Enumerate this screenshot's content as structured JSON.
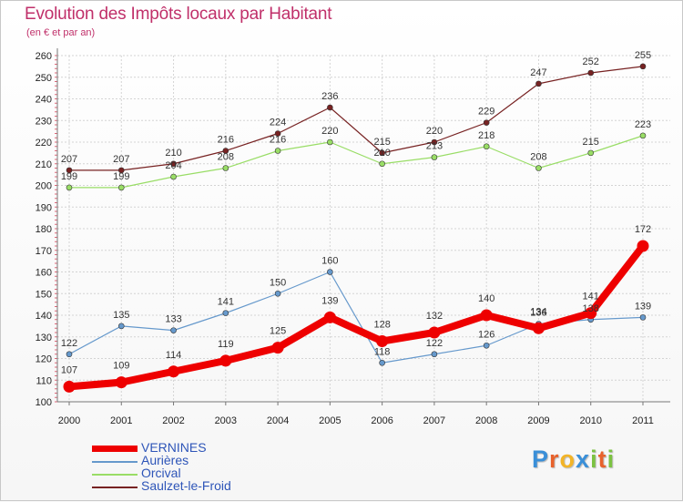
{
  "chart_data": {
    "type": "line",
    "title": "Evolution des Impôts locaux par Habitant",
    "subtitle": "(en € et par an)",
    "xlabel": "",
    "ylabel": "",
    "x": [
      "2000",
      "2001",
      "2002",
      "2003",
      "2004",
      "2005",
      "2006",
      "2007",
      "2008",
      "2009",
      "2010",
      "2011"
    ],
    "ylim": [
      100,
      260
    ],
    "yticks": [
      100,
      110,
      120,
      130,
      140,
      150,
      160,
      170,
      180,
      190,
      200,
      210,
      220,
      230,
      240,
      250,
      260
    ],
    "grid": true,
    "legend_position": "bottom-left",
    "series": [
      {
        "name": "VERNINES",
        "color": "#ee0000",
        "emphasis": true,
        "values": [
          107,
          109,
          114,
          119,
          125,
          139,
          128,
          132,
          140,
          134,
          141,
          172
        ]
      },
      {
        "name": "Aurières",
        "color": "#6699cc",
        "emphasis": false,
        "values": [
          122,
          135,
          133,
          141,
          150,
          160,
          118,
          122,
          126,
          136,
          138,
          139
        ]
      },
      {
        "name": "Orcival",
        "color": "#99dd66",
        "emphasis": false,
        "values": [
          199,
          199,
          204,
          208,
          216,
          220,
          210,
          213,
          218,
          208,
          215,
          223
        ]
      },
      {
        "name": "Saulzet-le-Froid",
        "color": "#772222",
        "emphasis": false,
        "values": [
          207,
          207,
          210,
          216,
          224,
          236,
          215,
          220,
          229,
          247,
          252,
          255
        ]
      }
    ]
  },
  "logo": {
    "letters": [
      {
        "ch": "P",
        "color": "#3a8fd8"
      },
      {
        "ch": "r",
        "color": "#e8622c"
      },
      {
        "ch": "o",
        "color": "#f2b428"
      },
      {
        "ch": "x",
        "color": "#3a8fd8"
      },
      {
        "ch": "i",
        "color": "#7cc242"
      },
      {
        "ch": "t",
        "color": "#e8622c"
      },
      {
        "ch": "i",
        "color": "#7cc242"
      }
    ]
  }
}
